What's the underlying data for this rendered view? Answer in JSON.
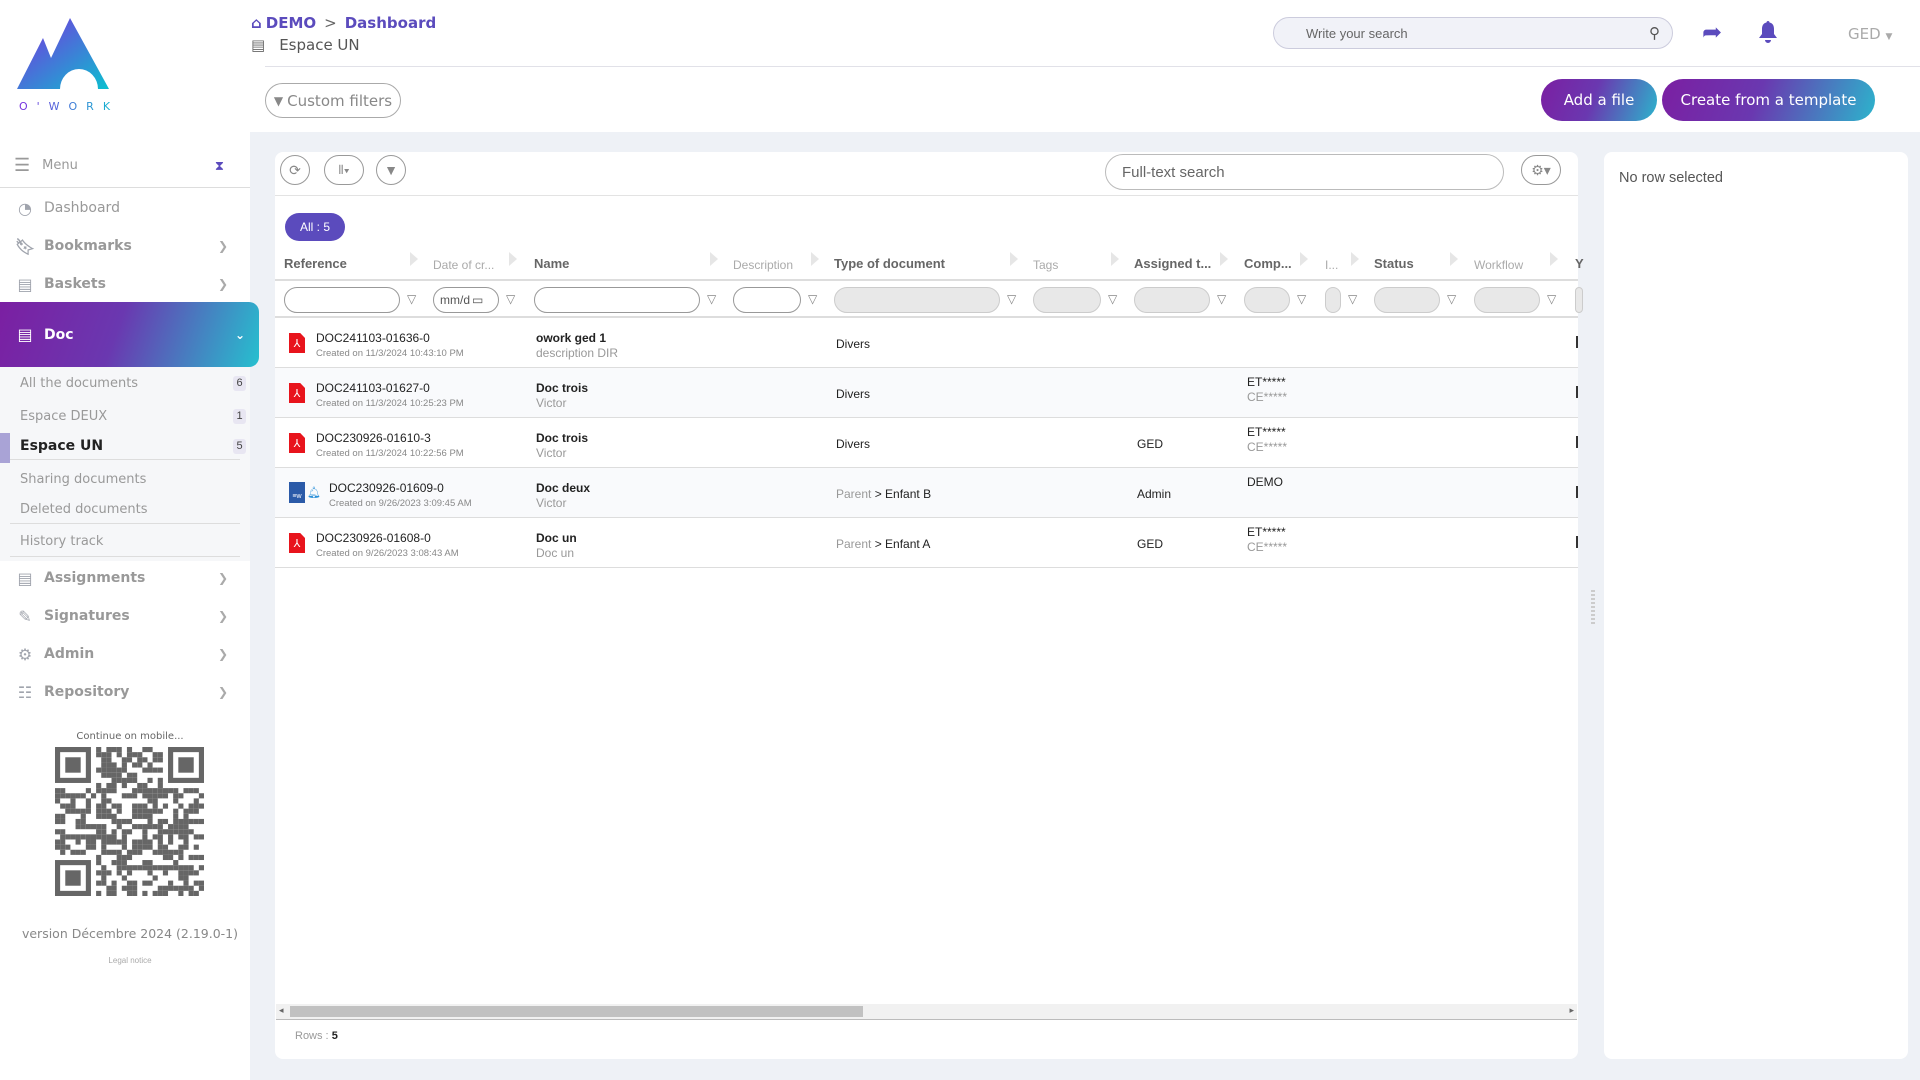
{
  "brand": {
    "logo_text": "O'WORK",
    "accent": "#5b4bbd"
  },
  "breadcrumb": {
    "root": "DEMO",
    "separator": ">",
    "current": "Dashboard"
  },
  "space": {
    "title": "Espace UN"
  },
  "header": {
    "search_placeholder": "Write your search",
    "app_selector": "GED",
    "custom_filters": "Custom filters",
    "add_file": "Add a file",
    "create_template": "Create from a template"
  },
  "sidebar": {
    "menu_label": "Menu",
    "items": [
      {
        "label": "Dashboard",
        "icon": "gauge-icon"
      },
      {
        "label": "Bookmarks",
        "icon": "bookmark-icon"
      },
      {
        "label": "Baskets",
        "icon": "book-icon"
      }
    ],
    "doc": {
      "label": "Doc",
      "icon": "book-icon"
    },
    "doc_items": [
      {
        "label": "All the documents",
        "count": "6"
      },
      {
        "label": "Espace DEUX",
        "count": "1"
      },
      {
        "label": "Espace UN",
        "count": "5",
        "active": true
      },
      {
        "label": "Sharing documents"
      },
      {
        "label": "Deleted documents"
      },
      {
        "label": "History track"
      }
    ],
    "items2": [
      {
        "label": "Assignments",
        "icon": "book-icon"
      },
      {
        "label": "Signatures",
        "icon": "signature-icon"
      },
      {
        "label": "Admin",
        "icon": "gear-icon"
      },
      {
        "label": "Repository",
        "icon": "list-icon"
      }
    ],
    "mobile_label": "Continue on mobile...",
    "version": "version Décembre 2024 (2.19.0-1)",
    "legal": "Legal notice"
  },
  "grid": {
    "fulltext_placeholder": "Full-text search",
    "all_pill": "All : 5",
    "columns": [
      "Reference",
      "Date of cr...",
      "Name",
      "Description",
      "Type of document",
      "Tags",
      "Assigned t...",
      "Comp...",
      "I...",
      "Status",
      "Workflow",
      "Y"
    ],
    "date_placeholder": "mm/d",
    "rows": [
      {
        "icon": "pdf-icon",
        "ref": "DOC241103-01636-0",
        "created": "Created on 11/3/2024 10:43:10 PM",
        "name": "owork ged 1",
        "desc": "description DIR",
        "type_parent": "",
        "type": "Divers",
        "assigned": "",
        "comp1": "",
        "comp2": ""
      },
      {
        "icon": "pdf-icon",
        "ref": "DOC241103-01627-0",
        "created": "Created on 11/3/2024 10:25:23 PM",
        "name": "Doc trois",
        "desc": "Victor",
        "type_parent": "",
        "type": "Divers",
        "assigned": "",
        "comp1": "ET*****",
        "comp2": "CE*****"
      },
      {
        "icon": "pdf-icon",
        "ref": "DOC230926-01610-3",
        "created": "Created on 11/3/2024 10:22:56 PM",
        "name": "Doc trois",
        "desc": "Victor",
        "type_parent": "",
        "type": "Divers",
        "assigned": "GED",
        "comp1": "ET*****",
        "comp2": "CE*****"
      },
      {
        "icon": "word-icon",
        "bell": true,
        "ref": "DOC230926-01609-0",
        "created": "Created on 9/26/2023 3:09:45 AM",
        "name": "Doc deux",
        "desc": "Victor",
        "type_parent": "Parent",
        "type": "> Enfant B",
        "assigned": "Admin",
        "comp1": "DEMO",
        "comp2": ""
      },
      {
        "icon": "pdf-icon",
        "ref": "DOC230926-01608-0",
        "created": "Created on 9/26/2023 3:08:43 AM",
        "name": "Doc un",
        "desc": "Doc un",
        "type_parent": "Parent",
        "type": "> Enfant A",
        "assigned": "GED",
        "comp1": "ET*****",
        "comp2": "CE*****"
      }
    ],
    "rows_label": "Rows :",
    "rows_count": "5",
    "scroll_fraction": 0.45
  },
  "detail": {
    "empty": "No row selected"
  }
}
